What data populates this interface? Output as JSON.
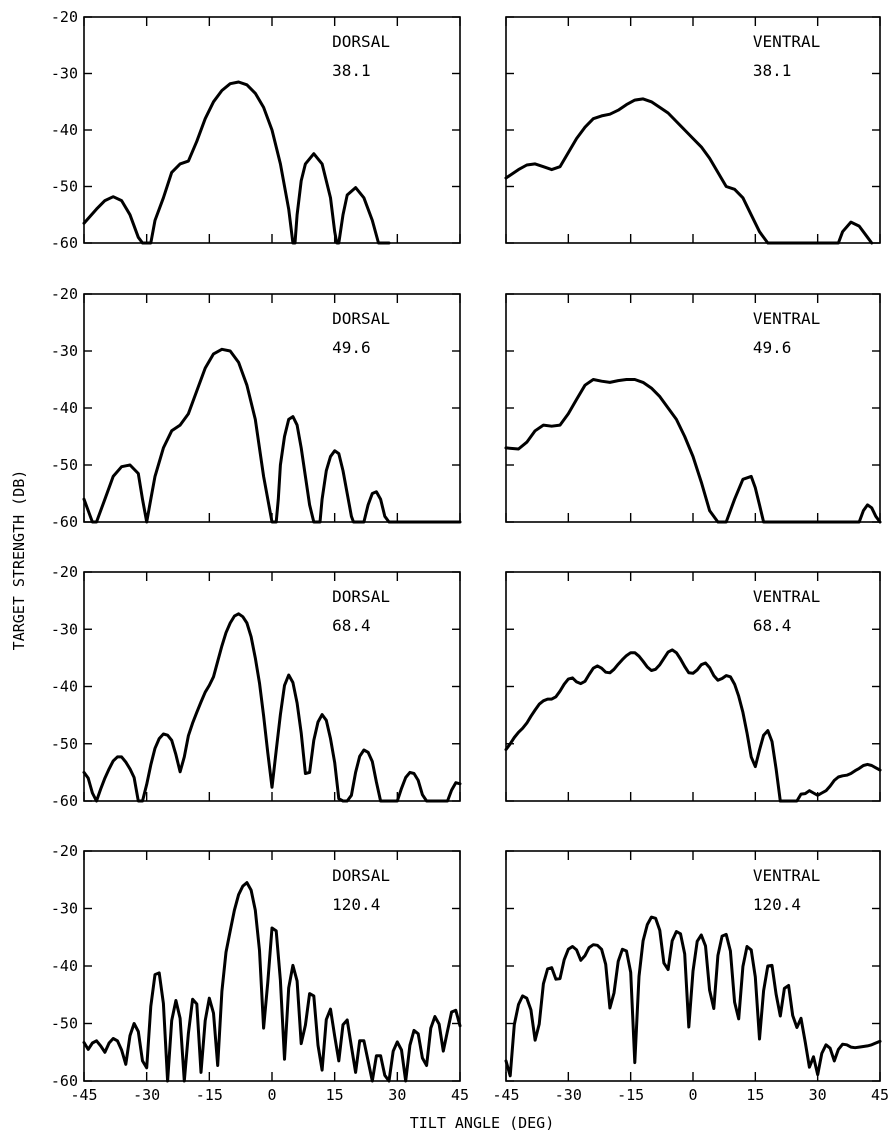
{
  "figure": {
    "ylabel": "TARGET STRENGTH (DB)",
    "xlabel": "TILT ANGLE (DEG)"
  },
  "chart_data": [
    {
      "type": "line",
      "side": "DORSAL",
      "freq": "38.1",
      "xlim": [
        -45,
        45
      ],
      "ylim": [
        -60,
        -20
      ],
      "xticks": [
        "-45",
        "-30",
        "-15",
        "0",
        "15",
        "30",
        "45"
      ],
      "yticks": [
        "-20",
        "-30",
        "-40",
        "-50",
        "-60"
      ],
      "x": [
        -45,
        -42,
        -40,
        -38,
        -36,
        -34,
        -32,
        -31,
        -29,
        -28,
        -26,
        -24,
        -22,
        -20,
        -18,
        -16,
        -14,
        -12,
        -10,
        -8,
        -6,
        -4,
        -2,
        0,
        2,
        4,
        5,
        5.5,
        6,
        7,
        8,
        10,
        12,
        14,
        15,
        15.5,
        16,
        17,
        18,
        20,
        22,
        24,
        25.5,
        26,
        27,
        28
      ],
      "y": [
        -56.5,
        -54,
        -52.5,
        -51.8,
        -52.5,
        -55,
        -59,
        -60,
        -60,
        -56,
        -52,
        -47.5,
        -46,
        -45.5,
        -42,
        -38,
        -35,
        -33,
        -31.8,
        -31.5,
        -32,
        -33.5,
        -36,
        -40,
        -46,
        -54,
        -60,
        -60,
        -55,
        -49,
        -46,
        -44.2,
        -46,
        -52,
        -58,
        -60,
        -60,
        -55,
        -51.5,
        -50.2,
        -52,
        -56,
        -60,
        -60,
        -60,
        -60
      ]
    },
    {
      "type": "line",
      "side": "VENTRAL",
      "freq": "38.1",
      "xlim": [
        -45,
        45
      ],
      "ylim": [
        -60,
        -20
      ],
      "xticks": [
        "-45",
        "-30",
        "-15",
        "0",
        "15",
        "30",
        "45"
      ],
      "yticks": [
        "-20",
        "-30",
        "-40",
        "-50",
        "-60"
      ],
      "x": [
        -45,
        -42,
        -40,
        -38,
        -36,
        -34,
        -32,
        -30,
        -28,
        -26,
        -24,
        -22,
        -20,
        -18,
        -16,
        -14,
        -12,
        -10,
        -8,
        -6,
        -4,
        -2,
        0,
        2,
        4,
        6,
        8,
        10,
        12,
        14,
        16,
        18,
        20,
        22,
        24,
        26,
        28,
        30,
        32,
        34,
        35,
        36,
        38,
        40,
        42,
        43
      ],
      "y": [
        -48.5,
        -47,
        -46.2,
        -46,
        -46.5,
        -47,
        -46.5,
        -44,
        -41.5,
        -39.5,
        -38,
        -37.5,
        -37.2,
        -36.5,
        -35.5,
        -34.7,
        -34.5,
        -35,
        -36,
        -37,
        -38.5,
        -40,
        -41.5,
        -43,
        -45,
        -47.5,
        -50,
        -50.5,
        -52,
        -55,
        -58,
        -60,
        -60,
        -60,
        -60,
        -60,
        -60,
        -60,
        -60,
        -60,
        -60,
        -58,
        -56.3,
        -57,
        -59,
        -60
      ]
    },
    {
      "type": "line",
      "side": "DORSAL",
      "freq": "49.6",
      "xlim": [
        -45,
        45
      ],
      "ylim": [
        -60,
        -20
      ],
      "xticks": [
        "-45",
        "-30",
        "-15",
        "0",
        "15",
        "30",
        "45"
      ],
      "yticks": [
        "-20",
        "-30",
        "-40",
        "-50",
        "-60"
      ],
      "x": [
        -45,
        -44,
        -43,
        -42,
        -40,
        -38,
        -36,
        -34,
        -32,
        -31,
        -30,
        -29,
        -28,
        -26,
        -24,
        -22,
        -20,
        -18,
        -16,
        -14,
        -12,
        -10,
        -8,
        -6,
        -4,
        -2,
        0,
        1,
        1.5,
        2,
        3,
        4,
        5,
        6,
        7,
        8,
        9,
        10,
        11,
        11.5,
        12,
        13,
        14,
        15,
        16,
        17,
        18,
        19,
        19.5,
        20,
        21,
        22,
        23,
        24,
        25,
        26,
        27,
        28,
        30,
        32,
        34,
        36,
        38,
        40,
        42,
        44,
        45
      ],
      "y": [
        -56,
        -58,
        -60,
        -60,
        -56,
        -52,
        -50.3,
        -50,
        -51.5,
        -56,
        -60,
        -56,
        -52,
        -47,
        -44,
        -43,
        -41,
        -37,
        -33,
        -30.5,
        -29.7,
        -30,
        -32,
        -36,
        -42,
        -52,
        -60,
        -60,
        -56,
        -50,
        -45,
        -42,
        -41.5,
        -43,
        -47,
        -52,
        -57,
        -60,
        -60,
        -60,
        -56,
        -51,
        -48.5,
        -47.5,
        -48,
        -51,
        -55,
        -59,
        -60,
        -60,
        -60,
        -60,
        -57,
        -55,
        -54.7,
        -56,
        -59,
        -60,
        -60,
        -60,
        -60,
        -60,
        -60,
        -60,
        -60,
        -60,
        -60
      ]
    },
    {
      "type": "line",
      "side": "VENTRAL",
      "freq": "49.6",
      "xlim": [
        -45,
        45
      ],
      "ylim": [
        -60,
        -20
      ],
      "xticks": [
        "-45",
        "-30",
        "-15",
        "0",
        "15",
        "30",
        "45"
      ],
      "yticks": [
        "-20",
        "-30",
        "-40",
        "-50",
        "-60"
      ],
      "x": [
        -45,
        -42,
        -40,
        -38,
        -36,
        -34,
        -32,
        -30,
        -28,
        -26,
        -24,
        -22,
        -20,
        -18,
        -16,
        -14,
        -12,
        -10,
        -8,
        -6,
        -4,
        -2,
        0,
        2,
        4,
        6,
        8,
        10,
        12,
        14,
        15,
        16,
        17,
        18,
        19,
        20,
        22,
        23,
        24,
        25,
        26,
        27,
        28,
        30,
        32,
        34,
        36,
        38,
        40,
        41,
        42,
        43,
        44,
        45
      ],
      "y": [
        -47,
        -47.2,
        -46,
        -44,
        -43,
        -43.2,
        -43,
        -41,
        -38.5,
        -36,
        -35,
        -35.3,
        -35.5,
        -35.2,
        -35,
        -35,
        -35.5,
        -36.5,
        -38,
        -40,
        -42,
        -45,
        -48.5,
        -53,
        -58,
        -60,
        -60,
        -56,
        -52.5,
        -52,
        -54,
        -57,
        -60,
        -60,
        -60,
        -60,
        -60,
        -60,
        -60,
        -60,
        -60,
        -60,
        -60,
        -60,
        -60,
        -60,
        -60,
        -60,
        -60,
        -58,
        -57,
        -57.5,
        -59,
        -60
      ]
    },
    {
      "type": "line",
      "side": "DORSAL",
      "freq": "68.4",
      "xlim": [
        -45,
        45
      ],
      "ylim": [
        -60,
        -20
      ],
      "xticks": [
        "-45",
        "-30",
        "-15",
        "0",
        "15",
        "30",
        "45"
      ],
      "yticks": [
        "-20",
        "-30",
        "-40",
        "-50",
        "-60"
      ],
      "x": [
        -45,
        -44,
        -43,
        -42,
        -41,
        -40,
        -39,
        -38,
        -37,
        -36,
        -35,
        -34,
        -33,
        -32,
        -31,
        -30,
        -29,
        -28,
        -27,
        -26,
        -25,
        -24,
        -23,
        -22,
        -21,
        -20,
        -19,
        -18,
        -17,
        -16,
        -15,
        -14,
        -13,
        -12,
        -11,
        -10,
        -9,
        -8,
        -7,
        -6,
        -5,
        -4,
        -3,
        -2,
        -1,
        0,
        1,
        2,
        3,
        4,
        5,
        6,
        7,
        8,
        9,
        10,
        11,
        12,
        13,
        14,
        15,
        16,
        17,
        18,
        19,
        20,
        21,
        22,
        23,
        24,
        25,
        26,
        27,
        28,
        29,
        30,
        31,
        32,
        33,
        34,
        35,
        36,
        37,
        38,
        39,
        40,
        41,
        42,
        43,
        44,
        45
      ],
      "y": [
        -55,
        -56,
        -58.6,
        -60,
        -57.9,
        -56,
        -54.4,
        -53,
        -52.3,
        -52.3,
        -53.2,
        -54.4,
        -55.9,
        -60,
        -60,
        -57.1,
        -53.7,
        -50.8,
        -49.1,
        -48.3,
        -48.5,
        -49.4,
        -51.9,
        -54.9,
        -52.3,
        -48.6,
        -46.4,
        -44.5,
        -42.7,
        -41,
        -39.8,
        -38.3,
        -35.6,
        -32.9,
        -30.6,
        -28.9,
        -27.7,
        -27.3,
        -27.8,
        -28.9,
        -31.3,
        -35,
        -39.4,
        -45.1,
        -51.6,
        -57.6,
        -51.2,
        -44.9,
        -39.8,
        -38,
        -39.3,
        -42.9,
        -48.1,
        -55.2,
        -55,
        -49.4,
        -46.2,
        -44.9,
        -45.9,
        -49.1,
        -53.3,
        -59.6,
        -60,
        -60,
        -59,
        -55,
        -52.2,
        -51.1,
        -51.5,
        -53.1,
        -56.7,
        -60,
        -60,
        -60,
        -60,
        -60,
        -57.8,
        -55.9,
        -55,
        -55.2,
        -56.4,
        -58.9,
        -60,
        -60,
        -60,
        -60,
        -60,
        -60,
        -58.1,
        -56.8,
        -57
      ]
    },
    {
      "type": "line",
      "side": "VENTRAL",
      "freq": "68.4",
      "xlim": [
        -45,
        45
      ],
      "ylim": [
        -60,
        -20
      ],
      "xticks": [
        "-45",
        "-30",
        "-15",
        "0",
        "15",
        "30",
        "45"
      ],
      "yticks": [
        "-20",
        "-30",
        "-40",
        "-50",
        "-60"
      ],
      "x": [
        -45,
        -44,
        -43,
        -42,
        -41,
        -40,
        -39,
        -38,
        -37,
        -36,
        -35,
        -34,
        -33,
        -32,
        -31,
        -30,
        -29,
        -28,
        -27,
        -26,
        -25,
        -24,
        -23,
        -22,
        -21,
        -20,
        -19,
        -18,
        -17,
        -16,
        -15,
        -14,
        -13,
        -12,
        -11,
        -10,
        -9,
        -8,
        -7,
        -6,
        -5,
        -4,
        -3,
        -2,
        -1,
        0,
        1,
        2,
        3,
        4,
        5,
        6,
        7,
        8,
        9,
        10,
        11,
        12,
        13,
        14,
        15,
        16,
        17,
        18,
        19,
        20,
        21,
        22,
        23,
        24,
        25,
        26,
        27,
        28,
        29,
        30,
        31,
        32,
        33,
        34,
        35,
        36,
        37,
        38,
        39,
        40,
        41,
        42,
        43,
        44,
        45
      ],
      "y": [
        -51,
        -50,
        -48.9,
        -48,
        -47.3,
        -46.4,
        -45.2,
        -44.1,
        -43.1,
        -42.5,
        -42.2,
        -42.2,
        -41.8,
        -40.8,
        -39.6,
        -38.7,
        -38.5,
        -39.2,
        -39.5,
        -39.1,
        -37.9,
        -36.8,
        -36.4,
        -36.8,
        -37.5,
        -37.6,
        -37,
        -36.1,
        -35.3,
        -34.6,
        -34.1,
        -34.1,
        -34.7,
        -35.6,
        -36.6,
        -37.2,
        -37,
        -36.2,
        -35.1,
        -34,
        -33.6,
        -34.1,
        -35.2,
        -36.5,
        -37.6,
        -37.7,
        -37.1,
        -36.2,
        -35.9,
        -36.7,
        -38.1,
        -38.9,
        -38.6,
        -38.1,
        -38.3,
        -39.6,
        -41.7,
        -44.5,
        -48.1,
        -52.3,
        -54,
        -51.1,
        -48.5,
        -47.7,
        -49.6,
        -54.4,
        -60,
        -60,
        -60,
        -60,
        -60,
        -58.8,
        -58.7,
        -58.2,
        -58.6,
        -59,
        -58.6,
        -58.2,
        -57.4,
        -56.4,
        -55.8,
        -55.6,
        -55.5,
        -55.2,
        -54.7,
        -54.3,
        -53.8,
        -53.6,
        -53.8,
        -54.2,
        -54.6
      ]
    },
    {
      "type": "line",
      "side": "DORSAL",
      "freq": "120.4",
      "xlim": [
        -45,
        45
      ],
      "ylim": [
        -60,
        -20
      ],
      "xticks": [
        "-45",
        "-30",
        "-15",
        "0",
        "15",
        "30",
        "45"
      ],
      "yticks": [
        "-20",
        "-30",
        "-40",
        "-50",
        "-60"
      ],
      "x": [
        -45,
        -44,
        -43,
        -42,
        -41,
        -40,
        -39,
        -38,
        -37,
        -36,
        -35,
        -34,
        -33,
        -32,
        -31,
        -30,
        -29,
        -28,
        -27,
        -26,
        -25,
        -24,
        -23,
        -22,
        -21,
        -20,
        -19,
        -18,
        -17,
        -16,
        -15,
        -14,
        -13,
        -12,
        -11,
        -10,
        -9,
        -8,
        -7,
        -6,
        -5,
        -4,
        -3,
        -2,
        -1,
        0,
        1,
        2,
        3,
        4,
        5,
        6,
        7,
        8,
        9,
        10,
        11,
        12,
        13,
        14,
        15,
        16,
        17,
        18,
        19,
        20,
        21,
        22,
        23,
        24,
        25,
        26,
        27,
        28,
        29,
        30,
        31,
        32,
        33,
        34,
        35,
        36,
        37,
        38,
        39,
        40,
        41,
        42,
        43,
        44,
        45
      ],
      "y": [
        -53.3,
        -54.5,
        -53.4,
        -53,
        -53.9,
        -55,
        -53.4,
        -52.6,
        -53,
        -54.6,
        -57.1,
        -52.1,
        -50,
        -51.4,
        -56.5,
        -57.7,
        -47,
        -41.5,
        -41.2,
        -46.5,
        -60,
        -49.5,
        -46,
        -49.1,
        -60,
        -51.7,
        -45.8,
        -46.6,
        -58.5,
        -49.5,
        -45.6,
        -48.2,
        -57.3,
        -44.4,
        -37.6,
        -33.9,
        -30.3,
        -27.6,
        -26.1,
        -25.5,
        -26.8,
        -30.3,
        -37.3,
        -50.8,
        -42.8,
        -33.4,
        -33.9,
        -42.5,
        -56.2,
        -43.8,
        -39.9,
        -42.6,
        -53.5,
        -50.3,
        -44.8,
        -45.2,
        -53.8,
        -58.1,
        -49.3,
        -47.5,
        -52.2,
        -56.5,
        -50.2,
        -49.4,
        -54,
        -58.5,
        -53,
        -53,
        -56.5,
        -60,
        -55.6,
        -55.6,
        -59,
        -60,
        -54.8,
        -53.2,
        -54.6,
        -60,
        -53.8,
        -51.2,
        -51.8,
        -56,
        -57.3,
        -50.8,
        -48.8,
        -50.1,
        -54.8,
        -51.3,
        -48,
        -47.7,
        -50.4
      ]
    },
    {
      "type": "line",
      "side": "VENTRAL",
      "freq": "120.4",
      "xlim": [
        -45,
        45
      ],
      "ylim": [
        -60,
        -20
      ],
      "xticks": [
        "-45",
        "-30",
        "-15",
        "0",
        "15",
        "30",
        "45"
      ],
      "yticks": [
        "-20",
        "-30",
        "-40",
        "-50",
        "-60"
      ],
      "x": [
        -45,
        -44,
        -43,
        -42,
        -41,
        -40,
        -39,
        -38,
        -37,
        -36,
        -35,
        -34,
        -33,
        -32,
        -31,
        -30,
        -29,
        -28,
        -27,
        -26,
        -25,
        -24,
        -23,
        -22,
        -21,
        -20,
        -19,
        -18,
        -17,
        -16,
        -15,
        -14,
        -13,
        -12,
        -11,
        -10,
        -9,
        -8,
        -7,
        -6,
        -5,
        -4,
        -3,
        -2,
        -1,
        0,
        1,
        2,
        3,
        4,
        5,
        6,
        7,
        8,
        9,
        10,
        11,
        12,
        13,
        14,
        15,
        16,
        17,
        18,
        19,
        20,
        21,
        22,
        23,
        24,
        25,
        26,
        27,
        28,
        29,
        30,
        31,
        32,
        33,
        34,
        35,
        36,
        37,
        38,
        39,
        40,
        41,
        42,
        43,
        44,
        45
      ],
      "y": [
        -56.5,
        -59.1,
        -50.2,
        -46.7,
        -45.2,
        -45.6,
        -47.6,
        -52.9,
        -50.1,
        -43.1,
        -40.5,
        -40.3,
        -42.3,
        -42.2,
        -38.9,
        -37.1,
        -36.6,
        -37.2,
        -39,
        -38.2,
        -36.8,
        -36.3,
        -36.4,
        -37.1,
        -39.7,
        -47.3,
        -44.7,
        -39.2,
        -37.1,
        -37.4,
        -41.1,
        -56.8,
        -41.8,
        -35.6,
        -32.8,
        -31.5,
        -31.7,
        -33.8,
        -39.5,
        -40.6,
        -35.6,
        -34,
        -34.4,
        -37.9,
        -50.6,
        -40.9,
        -35.7,
        -34.6,
        -36.5,
        -44.2,
        -47.4,
        -38.2,
        -34.8,
        -34.5,
        -37.4,
        -46.3,
        -49.2,
        -40.1,
        -36.6,
        -37.2,
        -41.9,
        -52.7,
        -44.3,
        -40,
        -39.9,
        -44.9,
        -48.7,
        -43.9,
        -43.4,
        -48.6,
        -50.7,
        -49.1,
        -53.2,
        -57.6,
        -55.8,
        -58.9,
        -55.2,
        -53.7,
        -54.3,
        -56.5,
        -54.5,
        -53.6,
        -53.7,
        -54.1,
        -54.2,
        -54.1,
        -54,
        -53.9,
        -53.7,
        -53.4,
        -53.1
      ]
    }
  ]
}
